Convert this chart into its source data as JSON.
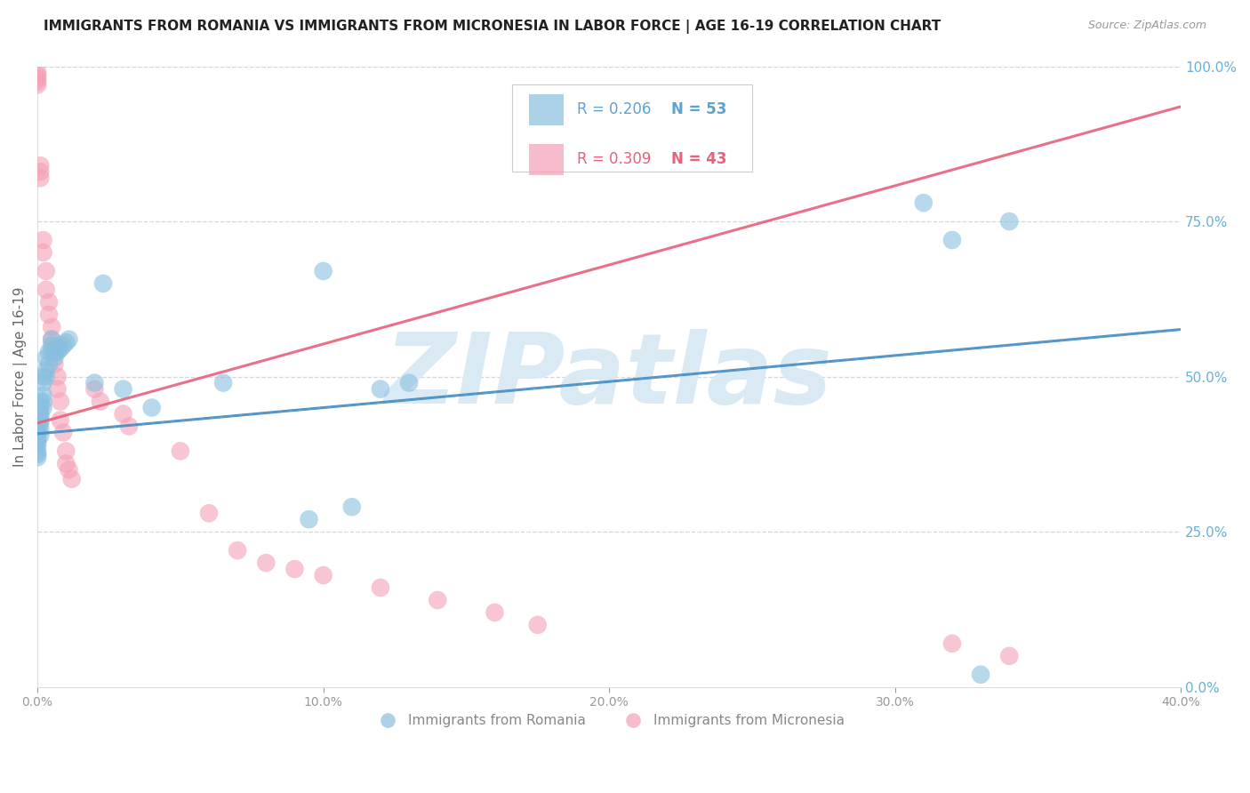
{
  "title": "IMMIGRANTS FROM ROMANIA VS IMMIGRANTS FROM MICRONESIA IN LABOR FORCE | AGE 16-19 CORRELATION CHART",
  "source": "Source: ZipAtlas.com",
  "ylabel": "In Labor Force | Age 16-19",
  "legend_blue_r": "R = 0.206",
  "legend_blue_n": "N = 53",
  "legend_pink_r": "R = 0.309",
  "legend_pink_n": "N = 43",
  "legend_label_blue": "Immigrants from Romania",
  "legend_label_pink": "Immigrants from Micronesia",
  "blue_color": "#89bfdf",
  "pink_color": "#f4a0b5",
  "blue_line_color": "#4a90c4",
  "pink_line_color": "#e8607a",
  "blue_text_color": "#5ba3d0",
  "pink_text_color": "#e8607a",
  "right_tick_color": "#6ab0d8",
  "background_color": "#ffffff",
  "grid_color": "#cccccc",
  "watermark_color": "#daeaf5",
  "xmin": 0.0,
  "xmax": 0.4,
  "ymin": 0.0,
  "ymax": 1.0,
  "romania_x": [
    0.0,
    0.0,
    0.0,
    0.0,
    0.0,
    0.0,
    0.0,
    0.0,
    0.0,
    0.0,
    0.001,
    0.001,
    0.001,
    0.001,
    0.001,
    0.001,
    0.001,
    0.001,
    0.002,
    0.002,
    0.002,
    0.002,
    0.002,
    0.003,
    0.003,
    0.003,
    0.004,
    0.004,
    0.005,
    0.005,
    0.005,
    0.006,
    0.006,
    0.007,
    0.007,
    0.008,
    0.009,
    0.01,
    0.011,
    0.02,
    0.023,
    0.03,
    0.04,
    0.065,
    0.095,
    0.1,
    0.11,
    0.12,
    0.13,
    0.31,
    0.32,
    0.33,
    0.34
  ],
  "romania_y": [
    0.43,
    0.42,
    0.415,
    0.41,
    0.4,
    0.395,
    0.39,
    0.38,
    0.375,
    0.37,
    0.46,
    0.45,
    0.44,
    0.435,
    0.43,
    0.425,
    0.415,
    0.405,
    0.5,
    0.49,
    0.47,
    0.46,
    0.45,
    0.53,
    0.51,
    0.5,
    0.54,
    0.52,
    0.56,
    0.55,
    0.54,
    0.54,
    0.53,
    0.55,
    0.54,
    0.545,
    0.55,
    0.555,
    0.56,
    0.49,
    0.65,
    0.48,
    0.45,
    0.49,
    0.27,
    0.67,
    0.29,
    0.48,
    0.49,
    0.78,
    0.72,
    0.02,
    0.75
  ],
  "micronesia_x": [
    0.0,
    0.0,
    0.0,
    0.0,
    0.0,
    0.001,
    0.001,
    0.001,
    0.002,
    0.002,
    0.003,
    0.003,
    0.004,
    0.004,
    0.005,
    0.005,
    0.006,
    0.006,
    0.007,
    0.007,
    0.008,
    0.008,
    0.009,
    0.01,
    0.01,
    0.011,
    0.012,
    0.02,
    0.022,
    0.03,
    0.032,
    0.05,
    0.06,
    0.07,
    0.08,
    0.09,
    0.1,
    0.12,
    0.14,
    0.16,
    0.175,
    0.32,
    0.34
  ],
  "micronesia_y": [
    0.99,
    0.985,
    0.98,
    0.975,
    0.97,
    0.84,
    0.83,
    0.82,
    0.72,
    0.7,
    0.67,
    0.64,
    0.62,
    0.6,
    0.58,
    0.56,
    0.54,
    0.52,
    0.5,
    0.48,
    0.46,
    0.43,
    0.41,
    0.38,
    0.36,
    0.35,
    0.335,
    0.48,
    0.46,
    0.44,
    0.42,
    0.38,
    0.28,
    0.22,
    0.2,
    0.19,
    0.18,
    0.16,
    0.14,
    0.12,
    0.1,
    0.07,
    0.05
  ],
  "romania_line": {
    "x0": 0.0,
    "y0": 0.408,
    "x1": 0.4,
    "y1": 0.58
  },
  "micronesia_line": {
    "x0": 0.0,
    "y0": 0.425,
    "x1": 0.4,
    "y2": 0.94
  }
}
